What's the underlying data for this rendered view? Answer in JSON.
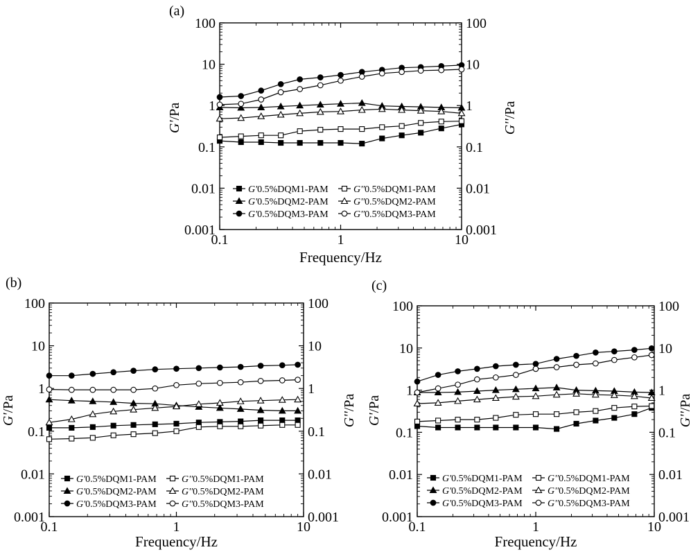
{
  "figure": {
    "panels": [
      {
        "id": "a",
        "label": "(a)"
      },
      {
        "id": "b",
        "label": "(b)"
      },
      {
        "id": "c",
        "label": "(c)"
      }
    ]
  },
  "chart_data": [
    {
      "panel": "(a)",
      "type": "line",
      "xlabel": "Frequency/Hz",
      "ylabel_left": {
        "symbol": "G'",
        "unit": "/Pa"
      },
      "ylabel_right": {
        "symbol": "G''",
        "unit": "/Pa"
      },
      "x_scale": "log",
      "y_scale": "log",
      "xlim": [
        0.1,
        10
      ],
      "ylim": [
        0.001,
        100
      ],
      "x_ticks": [
        {
          "v": 0.1,
          "t": "0.1"
        },
        {
          "v": 1,
          "t": "1"
        },
        {
          "v": 10,
          "t": "10"
        }
      ],
      "y_ticks": [
        {
          "v": 0.001,
          "t": "0.001"
        },
        {
          "v": 0.01,
          "t": "0.01"
        },
        {
          "v": 0.1,
          "t": "0.1"
        },
        {
          "v": 1,
          "t": "1"
        },
        {
          "v": 10,
          "t": "10"
        },
        {
          "v": 100,
          "t": "100"
        }
      ],
      "grid": false,
      "legend_position": "bottom-left",
      "series": [
        {
          "name": "G'0.5%DQM1-PAM",
          "prefix": "G'",
          "suffix": "0.5%DQM1-PAM",
          "marker": "square",
          "filled": true,
          "x": [
            0.1,
            0.15,
            0.22,
            0.32,
            0.46,
            0.68,
            1.0,
            1.5,
            2.2,
            3.2,
            4.6,
            6.8,
            10
          ],
          "y": [
            0.14,
            0.13,
            0.13,
            0.125,
            0.125,
            0.125,
            0.125,
            0.12,
            0.16,
            0.19,
            0.22,
            0.28,
            0.35
          ]
        },
        {
          "name": "G''0.5%DQM1-PAM",
          "prefix": "G''",
          "suffix": "0.5%DQM1-PAM",
          "marker": "square",
          "filled": false,
          "x": [
            0.1,
            0.15,
            0.22,
            0.32,
            0.46,
            0.68,
            1.0,
            1.5,
            2.2,
            3.2,
            4.6,
            6.8,
            10
          ],
          "y": [
            0.17,
            0.18,
            0.19,
            0.19,
            0.24,
            0.26,
            0.27,
            0.27,
            0.3,
            0.32,
            0.38,
            0.41,
            0.42
          ]
        },
        {
          "name": "G'0.5%DQM2-PAM",
          "prefix": "G'",
          "suffix": "0.5%DQM2-PAM",
          "marker": "triangle",
          "filled": true,
          "x": [
            0.1,
            0.15,
            0.22,
            0.32,
            0.46,
            0.68,
            1.0,
            1.5,
            2.2,
            3.2,
            4.6,
            6.8,
            10
          ],
          "y": [
            0.9,
            0.88,
            0.9,
            0.95,
            1.0,
            1.05,
            1.1,
            1.15,
            0.98,
            0.95,
            0.93,
            0.9,
            0.88
          ]
        },
        {
          "name": "G''0.5%DQM2-PAM",
          "prefix": "G''",
          "suffix": "0.5%DQM2-PAM",
          "marker": "triangle",
          "filled": false,
          "x": [
            0.1,
            0.15,
            0.22,
            0.32,
            0.46,
            0.68,
            1.0,
            1.5,
            2.2,
            3.2,
            4.6,
            6.8,
            10
          ],
          "y": [
            0.48,
            0.5,
            0.55,
            0.6,
            0.65,
            0.7,
            0.72,
            0.78,
            0.82,
            0.78,
            0.75,
            0.72,
            0.65
          ]
        },
        {
          "name": "G'0.5%DQM3-PAM",
          "prefix": "G'",
          "suffix": "0.5%DQM3-PAM",
          "marker": "circle",
          "filled": true,
          "x": [
            0.1,
            0.15,
            0.22,
            0.32,
            0.46,
            0.68,
            1.0,
            1.5,
            2.2,
            3.2,
            4.6,
            6.8,
            10
          ],
          "y": [
            1.6,
            1.7,
            2.3,
            3.3,
            4.3,
            4.8,
            5.5,
            6.5,
            7.3,
            8.2,
            8.5,
            9.0,
            9.5
          ]
        },
        {
          "name": "G''0.5%DQM3-PAM",
          "prefix": "G''",
          "suffix": "0.5%DQM3-PAM",
          "marker": "circle",
          "filled": false,
          "x": [
            0.1,
            0.15,
            0.22,
            0.32,
            0.46,
            0.68,
            1.0,
            1.5,
            2.2,
            3.2,
            4.6,
            6.8,
            10
          ],
          "y": [
            1.05,
            1.1,
            1.4,
            2.1,
            2.5,
            3.1,
            4.0,
            5.0,
            6.0,
            6.5,
            7.0,
            7.2,
            7.5
          ]
        }
      ]
    },
    {
      "panel": "(b)",
      "type": "line",
      "xlabel": "Frequency/Hz",
      "ylabel_left": {
        "symbol": "G'",
        "unit": "/Pa"
      },
      "ylabel_right": {
        "symbol": "G''",
        "unit": "/Pa"
      },
      "x_scale": "log",
      "y_scale": "log",
      "xlim": [
        0.1,
        10
      ],
      "ylim": [
        0.001,
        100
      ],
      "x_ticks": [
        {
          "v": 0.1,
          "t": "0.1"
        },
        {
          "v": 1,
          "t": "1"
        },
        {
          "v": 10,
          "t": "10"
        }
      ],
      "y_ticks": [
        {
          "v": 0.001,
          "t": "0.001"
        },
        {
          "v": 0.01,
          "t": "0.01"
        },
        {
          "v": 0.1,
          "t": "0.1"
        },
        {
          "v": 1,
          "t": "1"
        },
        {
          "v": 10,
          "t": "10"
        },
        {
          "v": 100,
          "t": "100"
        }
      ],
      "grid": false,
      "legend_position": "bottom-left",
      "series": [
        {
          "name": "G'0.5%DQM1-PAM",
          "prefix": "G'",
          "suffix": "0.5%DQM1-PAM",
          "marker": "square",
          "filled": true,
          "x": [
            0.1,
            0.15,
            0.22,
            0.32,
            0.46,
            0.68,
            1.0,
            1.5,
            2.2,
            3.2,
            4.6,
            6.8,
            9.0
          ],
          "y": [
            0.12,
            0.12,
            0.125,
            0.135,
            0.14,
            0.145,
            0.15,
            0.16,
            0.165,
            0.17,
            0.18,
            0.18,
            0.18
          ]
        },
        {
          "name": "G''0.5%DQM1-PAM",
          "prefix": "G''",
          "suffix": "0.5%DQM1-PAM",
          "marker": "square",
          "filled": false,
          "x": [
            0.1,
            0.15,
            0.22,
            0.32,
            0.46,
            0.68,
            1.0,
            1.5,
            2.2,
            3.2,
            4.6,
            6.8,
            9.0
          ],
          "y": [
            0.065,
            0.067,
            0.07,
            0.08,
            0.085,
            0.09,
            0.1,
            0.125,
            0.13,
            0.13,
            0.135,
            0.14,
            0.14
          ]
        },
        {
          "name": "G'0.5%DQM2-PAM",
          "prefix": "G'",
          "suffix": "0.5%DQM2-PAM",
          "marker": "triangle",
          "filled": true,
          "x": [
            0.1,
            0.15,
            0.22,
            0.32,
            0.46,
            0.68,
            1.0,
            1.5,
            2.2,
            3.2,
            4.6,
            6.8,
            9.0
          ],
          "y": [
            0.55,
            0.52,
            0.5,
            0.48,
            0.45,
            0.44,
            0.4,
            0.37,
            0.35,
            0.33,
            0.31,
            0.3,
            0.3
          ]
        },
        {
          "name": "G''0.5%DQM2-PAM",
          "prefix": "G''",
          "suffix": "0.5%DQM2-PAM",
          "marker": "triangle",
          "filled": false,
          "x": [
            0.1,
            0.15,
            0.22,
            0.32,
            0.46,
            0.68,
            1.0,
            1.5,
            2.2,
            3.2,
            4.6,
            6.8,
            9.0
          ],
          "y": [
            0.16,
            0.19,
            0.25,
            0.29,
            0.32,
            0.35,
            0.38,
            0.43,
            0.46,
            0.5,
            0.52,
            0.54,
            0.55
          ]
        },
        {
          "name": "G'0.5%DQM3-PAM",
          "prefix": "G'",
          "suffix": "0.5%DQM3-PAM",
          "marker": "circle",
          "filled": true,
          "x": [
            0.1,
            0.15,
            0.22,
            0.32,
            0.46,
            0.68,
            1.0,
            1.5,
            2.2,
            3.2,
            4.6,
            6.8,
            9.0
          ],
          "y": [
            2.0,
            2.0,
            2.2,
            2.4,
            2.6,
            2.8,
            2.9,
            3.0,
            3.1,
            3.2,
            3.4,
            3.5,
            3.6
          ]
        },
        {
          "name": "G''0.5%DQM3-PAM",
          "prefix": "G''",
          "suffix": "0.5%DQM3-PAM",
          "marker": "circle",
          "filled": false,
          "x": [
            0.1,
            0.15,
            0.22,
            0.32,
            0.46,
            0.68,
            1.0,
            1.5,
            2.2,
            3.2,
            4.6,
            6.8,
            9.0
          ],
          "y": [
            0.95,
            0.93,
            0.93,
            0.93,
            0.93,
            1.0,
            1.2,
            1.3,
            1.35,
            1.4,
            1.5,
            1.55,
            1.6
          ]
        }
      ]
    },
    {
      "panel": "(c)",
      "type": "line",
      "xlabel": "Frequency/Hz",
      "ylabel_left": {
        "symbol": "G'",
        "unit": "/Pa"
      },
      "ylabel_right": {
        "symbol": "G''",
        "unit": "/Pa"
      },
      "x_scale": "log",
      "y_scale": "log",
      "xlim": [
        0.1,
        10
      ],
      "ylim": [
        0.001,
        100
      ],
      "x_ticks": [
        {
          "v": 0.1,
          "t": "0.1"
        },
        {
          "v": 1,
          "t": "1"
        },
        {
          "v": 10,
          "t": "10"
        }
      ],
      "y_ticks": [
        {
          "v": 0.001,
          "t": "0.001"
        },
        {
          "v": 0.01,
          "t": "0.01"
        },
        {
          "v": 0.1,
          "t": "0.1"
        },
        {
          "v": 1,
          "t": "1"
        },
        {
          "v": 10,
          "t": "10"
        },
        {
          "v": 100,
          "t": "100"
        }
      ],
      "grid": false,
      "legend_position": "bottom-left",
      "series": [
        {
          "name": "G'0.5%DQM1-PAM",
          "prefix": "G'",
          "suffix": "0.5%DQM1-PAM",
          "marker": "square",
          "filled": true,
          "x": [
            0.1,
            0.15,
            0.22,
            0.32,
            0.46,
            0.68,
            1.0,
            1.5,
            2.2,
            3.2,
            4.6,
            6.8,
            9.5
          ],
          "y": [
            0.14,
            0.13,
            0.13,
            0.13,
            0.13,
            0.13,
            0.13,
            0.12,
            0.16,
            0.19,
            0.22,
            0.27,
            0.38
          ]
        },
        {
          "name": "G''0.5%DQM1-PAM",
          "prefix": "G''",
          "suffix": "0.5%DQM1-PAM",
          "marker": "square",
          "filled": false,
          "x": [
            0.1,
            0.15,
            0.22,
            0.32,
            0.46,
            0.68,
            1.0,
            1.5,
            2.2,
            3.2,
            4.6,
            6.8,
            9.5
          ],
          "y": [
            0.18,
            0.19,
            0.2,
            0.2,
            0.22,
            0.26,
            0.27,
            0.27,
            0.3,
            0.32,
            0.38,
            0.41,
            0.42
          ]
        },
        {
          "name": "G'0.5%DQM2-PAM",
          "prefix": "G'",
          "suffix": "0.5%DQM2-PAM",
          "marker": "triangle",
          "filled": true,
          "x": [
            0.1,
            0.15,
            0.22,
            0.32,
            0.46,
            0.68,
            1.0,
            1.5,
            2.2,
            3.2,
            4.6,
            6.8,
            9.5
          ],
          "y": [
            0.88,
            0.88,
            0.9,
            0.95,
            1.0,
            1.05,
            1.1,
            1.15,
            1.0,
            0.97,
            0.95,
            0.9,
            0.88
          ]
        },
        {
          "name": "G''0.5%DQM2-PAM",
          "prefix": "G''",
          "suffix": "0.5%DQM2-PAM",
          "marker": "triangle",
          "filled": false,
          "x": [
            0.1,
            0.15,
            0.22,
            0.32,
            0.46,
            0.68,
            1.0,
            1.5,
            2.2,
            3.2,
            4.6,
            6.8,
            9.5
          ],
          "y": [
            0.48,
            0.5,
            0.55,
            0.6,
            0.65,
            0.7,
            0.72,
            0.78,
            0.82,
            0.78,
            0.76,
            0.72,
            0.65
          ]
        },
        {
          "name": "G'0.5%DQM3-PAM",
          "prefix": "G'",
          "suffix": "0.5%DQM3-PAM",
          "marker": "circle",
          "filled": true,
          "x": [
            0.1,
            0.15,
            0.22,
            0.32,
            0.46,
            0.68,
            1.0,
            1.5,
            2.2,
            3.2,
            4.6,
            6.8,
            9.5
          ],
          "y": [
            1.6,
            2.3,
            2.8,
            3.2,
            3.7,
            4.0,
            4.2,
            5.5,
            6.5,
            7.8,
            8.3,
            9.0,
            9.8
          ]
        },
        {
          "name": "G''0.5%DQM3-PAM",
          "prefix": "G''",
          "suffix": "0.5%DQM3-PAM",
          "marker": "circle",
          "filled": false,
          "x": [
            0.1,
            0.15,
            0.22,
            0.32,
            0.46,
            0.68,
            1.0,
            1.5,
            2.2,
            3.2,
            4.6,
            6.8,
            9.5
          ],
          "y": [
            0.88,
            1.1,
            1.35,
            1.8,
            2.0,
            2.3,
            3.2,
            3.5,
            4.0,
            4.3,
            5.2,
            6.0,
            6.8
          ]
        }
      ]
    }
  ]
}
